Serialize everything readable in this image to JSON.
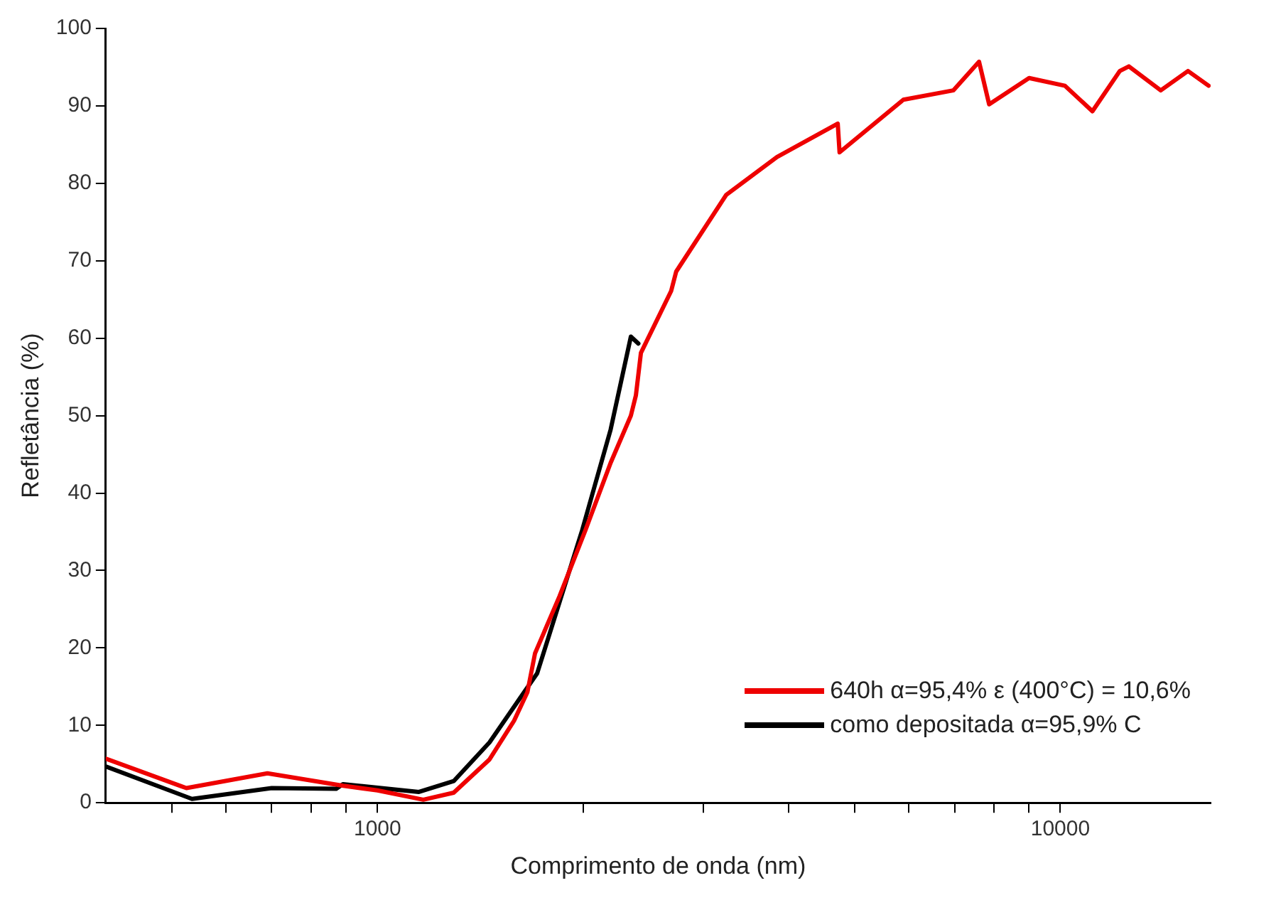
{
  "chart_data": {
    "type": "line",
    "xlabel": "Comprimento de onda (nm)",
    "ylabel": "Refletância (%)",
    "log": "x",
    "xlim": [
      400,
      16600
    ],
    "ylim": [
      0,
      100
    ],
    "xticks": [
      {
        "value": 500,
        "label": null
      },
      {
        "value": 600,
        "label": null
      },
      {
        "value": 700,
        "label": null
      },
      {
        "value": 800,
        "label": null
      },
      {
        "value": 900,
        "label": null
      },
      1000,
      {
        "value": 2000,
        "label": null
      },
      {
        "value": 3000,
        "label": null
      },
      {
        "value": 4000,
        "label": null
      },
      {
        "value": 5000,
        "label": null
      },
      {
        "value": 6000,
        "label": null
      },
      {
        "value": 7000,
        "label": null
      },
      {
        "value": 8000,
        "label": null
      },
      {
        "value": 9000,
        "label": null
      },
      10000
    ],
    "yticks": [
      0,
      10,
      20,
      30,
      40,
      50,
      60,
      70,
      80,
      90,
      100
    ],
    "grid": false,
    "legend": "bottom right",
    "marker": "none",
    "line_style": "solid",
    "series": [
      {
        "name": "640h α=95,4% ε (400°C) = 10,6%",
        "color": "#ee0000",
        "x": [
          400,
          525,
          690,
          891,
          1000,
          1167,
          1293,
          1459,
          1585,
          1658,
          1701,
          1848,
          2016,
          2195,
          2350,
          2390,
          2431,
          2692,
          2738,
          3241,
          3846,
          4721,
          4750,
          5890,
          6970,
          7603,
          7866,
          9000,
          10156,
          11143,
          12220,
          12600,
          14030,
          15380,
          16490
        ],
        "values": [
          5.7,
          1.9,
          3.8,
          2.2,
          1.6,
          0.4,
          1.3,
          5.6,
          10.6,
          14.3,
          19.3,
          26.7,
          35.2,
          43.9,
          50,
          52.6,
          58.1,
          66.1,
          68.6,
          78.5,
          83.4,
          87.7,
          84,
          90.8,
          92,
          95.7,
          90.2,
          93.6,
          92.6,
          89.3,
          94.5,
          95.1,
          92,
          94.5,
          92.6
        ]
      },
      {
        "name": "como depositada α=95,9% C",
        "color": "#000000",
        "x": [
          400,
          535,
          700,
          870,
          890,
          1150,
          1293,
          1459,
          1640,
          1713,
          1994,
          2195,
          2350,
          2410
        ],
        "values": [
          4.7,
          0.5,
          1.9,
          1.8,
          2.4,
          1.4,
          2.8,
          7.8,
          14.3,
          16.7,
          35.2,
          48.2,
          60.2,
          59.3
        ]
      }
    ]
  }
}
